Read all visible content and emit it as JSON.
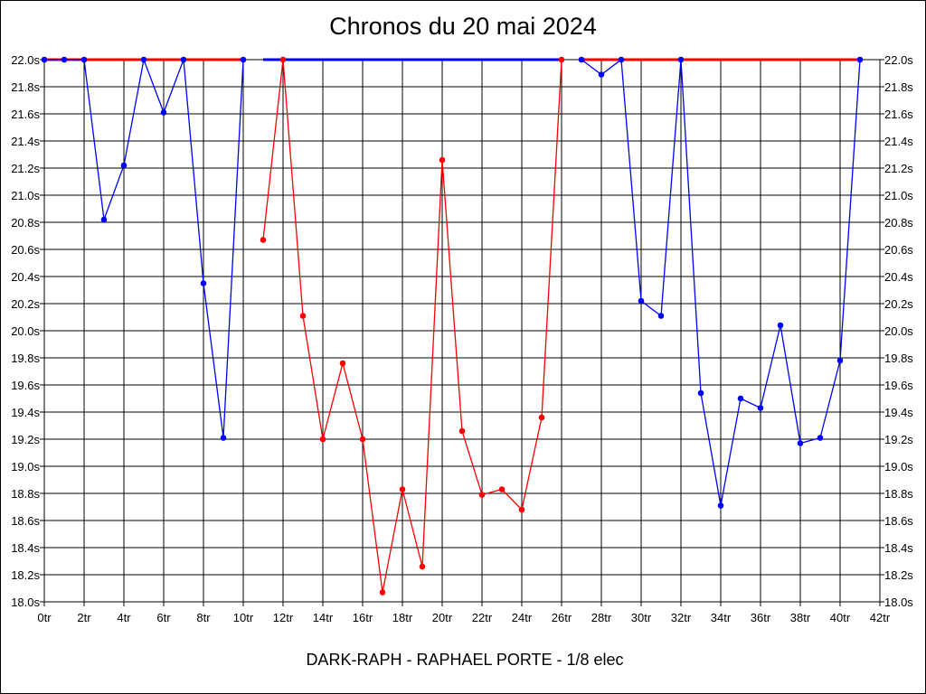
{
  "chart_data": {
    "type": "line",
    "title": "Chronos du 20 mai 2024",
    "footer": "DARK-RAPH - RAPHAEL PORTE - 1/8 elec",
    "x_tick_labels": [
      "0tr",
      "2tr",
      "4tr",
      "6tr",
      "8tr",
      "10tr",
      "12tr",
      "14tr",
      "16tr",
      "18tr",
      "20tr",
      "22tr",
      "24tr",
      "26tr",
      "28tr",
      "30tr",
      "32tr",
      "34tr",
      "36tr",
      "38tr",
      "40tr",
      "42tr"
    ],
    "y_tick_labels": [
      "22.0s",
      "21.8s",
      "21.6s",
      "21.4s",
      "21.2s",
      "21.0s",
      "20.8s",
      "20.6s",
      "20.4s",
      "20.2s",
      "20.0s",
      "19.8s",
      "19.6s",
      "19.4s",
      "19.2s",
      "19.0s",
      "18.8s",
      "18.6s",
      "18.4s",
      "18.2s",
      "18.0s"
    ],
    "xlim": [
      0,
      42
    ],
    "ylim": [
      18.0,
      22.0
    ],
    "grid": true,
    "colors": {
      "red": "#ff0000",
      "blue": "#0000ff",
      "grid": "#000000"
    },
    "series": [
      {
        "color": "#0000ff",
        "points": [
          [
            0,
            22.0
          ],
          [
            1,
            22.0
          ],
          [
            2,
            22.0
          ],
          [
            3,
            20.82
          ],
          [
            4,
            21.22
          ],
          [
            5,
            22.0
          ],
          [
            6,
            21.61
          ],
          [
            7,
            22.0
          ],
          [
            8,
            20.35
          ],
          [
            9,
            19.21
          ],
          [
            10,
            22.0
          ]
        ]
      },
      {
        "color": "#ff0000",
        "points": [
          [
            11,
            20.67
          ],
          [
            12,
            22.0
          ],
          [
            13,
            20.11
          ],
          [
            14,
            19.2
          ],
          [
            15,
            19.76
          ],
          [
            16,
            19.2
          ],
          [
            17,
            18.07
          ],
          [
            18,
            18.83
          ],
          [
            19,
            18.26
          ],
          [
            20,
            21.26
          ],
          [
            21,
            19.26
          ],
          [
            22,
            18.79
          ],
          [
            23,
            18.83
          ],
          [
            24,
            18.68
          ],
          [
            25,
            19.36
          ],
          [
            26,
            22.0
          ]
        ]
      },
      {
        "color": "#0000ff",
        "points": [
          [
            27,
            22.0
          ],
          [
            28,
            21.89
          ],
          [
            29,
            22.0
          ],
          [
            30,
            20.22
          ],
          [
            31,
            20.11
          ],
          [
            32,
            22.0
          ],
          [
            33,
            19.54
          ],
          [
            34,
            18.71
          ],
          [
            35,
            19.5
          ],
          [
            36,
            19.43
          ],
          [
            37,
            20.04
          ],
          [
            38,
            19.17
          ],
          [
            39,
            19.21
          ],
          [
            40,
            19.78
          ],
          [
            41,
            22.0
          ]
        ]
      }
    ],
    "top_band": [
      {
        "color": "#ff0000",
        "from": 0,
        "to": 10
      },
      {
        "color": "#0000ff",
        "from": 11,
        "to": 26
      },
      {
        "color": "#ff0000",
        "from": 27,
        "to": 41
      }
    ]
  }
}
